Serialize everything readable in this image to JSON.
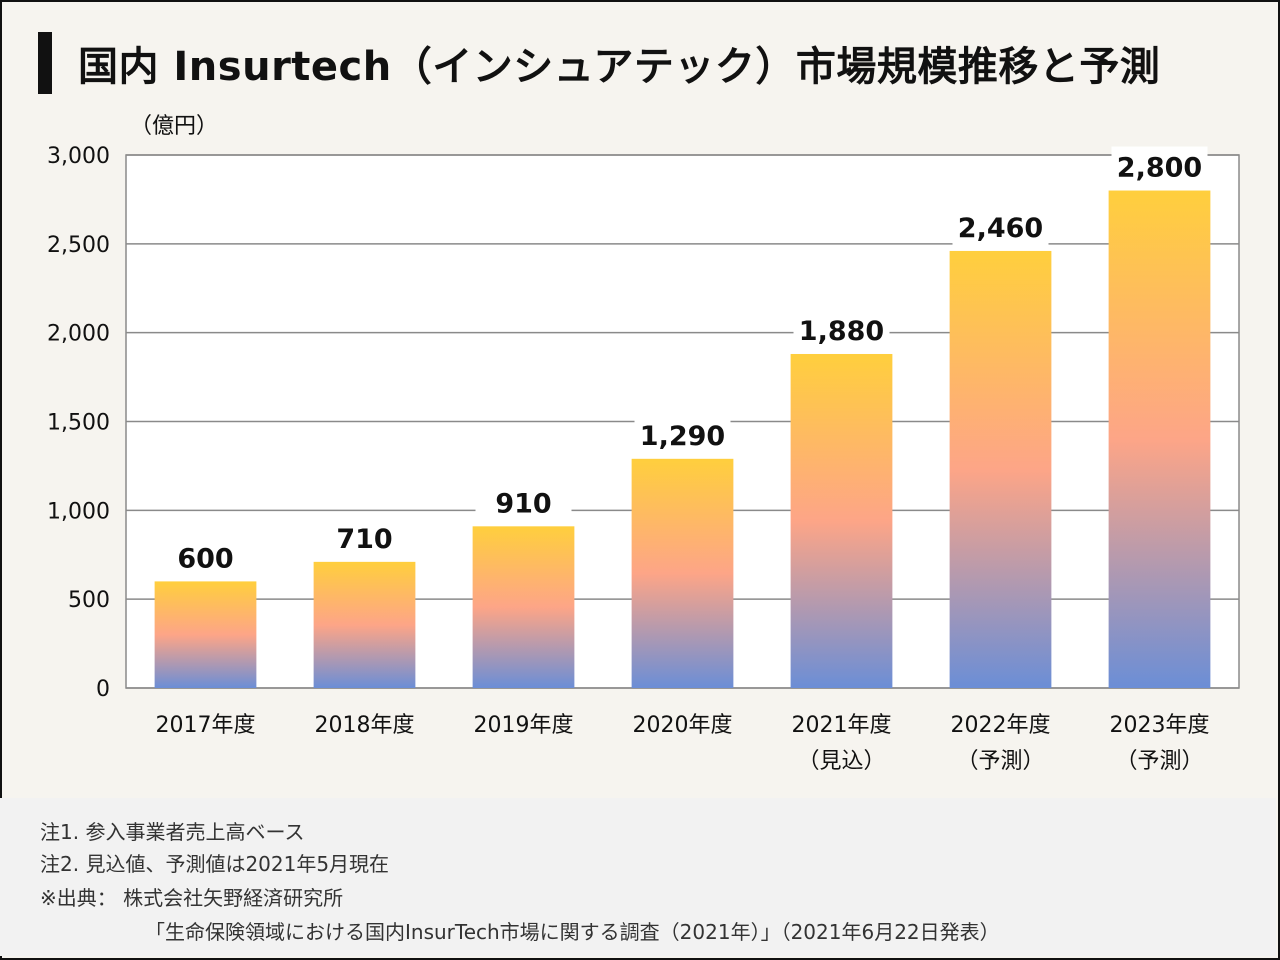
{
  "title": "国内 Insurtech（インシュアテック）市場規模推移と予測",
  "unit_label": "（億円）",
  "colors": {
    "bar_top": "#ffcf3d",
    "bar_mid": "#fda587",
    "bar_bottom": "#6b8ed6",
    "grid": "#8a8a8a",
    "text": "#111111"
  },
  "chart_data": {
    "type": "bar",
    "categories": [
      "2017年度",
      "2018年度",
      "2019年度",
      "2020年度",
      "2021年度",
      "2022年度",
      "2023年度"
    ],
    "category_sublabels": [
      "",
      "",
      "",
      "",
      "（見込）",
      "（予測）",
      "（予測）"
    ],
    "values": [
      600,
      710,
      910,
      1290,
      1880,
      2460,
      2800
    ],
    "value_labels": [
      "600",
      "710",
      "910",
      "1,290",
      "1,880",
      "2,460",
      "2,800"
    ],
    "ylim": [
      0,
      3000
    ],
    "yticks": [
      0,
      500,
      1000,
      1500,
      2000,
      2500,
      3000
    ],
    "ytick_labels": [
      "0",
      "500",
      "1,000",
      "1,500",
      "2,000",
      "2,500",
      "3,000"
    ],
    "grid": true,
    "ylabel": "（億円）"
  },
  "notes": [
    "注1. 参入事業者売上高ベース",
    "注2. 見込値、予測値は2021年5月現在",
    "※出典： 株式会社矢野経済研究所",
    "「生命保険領域における国内InsurTech市場に関する調査（2021年）」（2021年6月22日発表）"
  ]
}
